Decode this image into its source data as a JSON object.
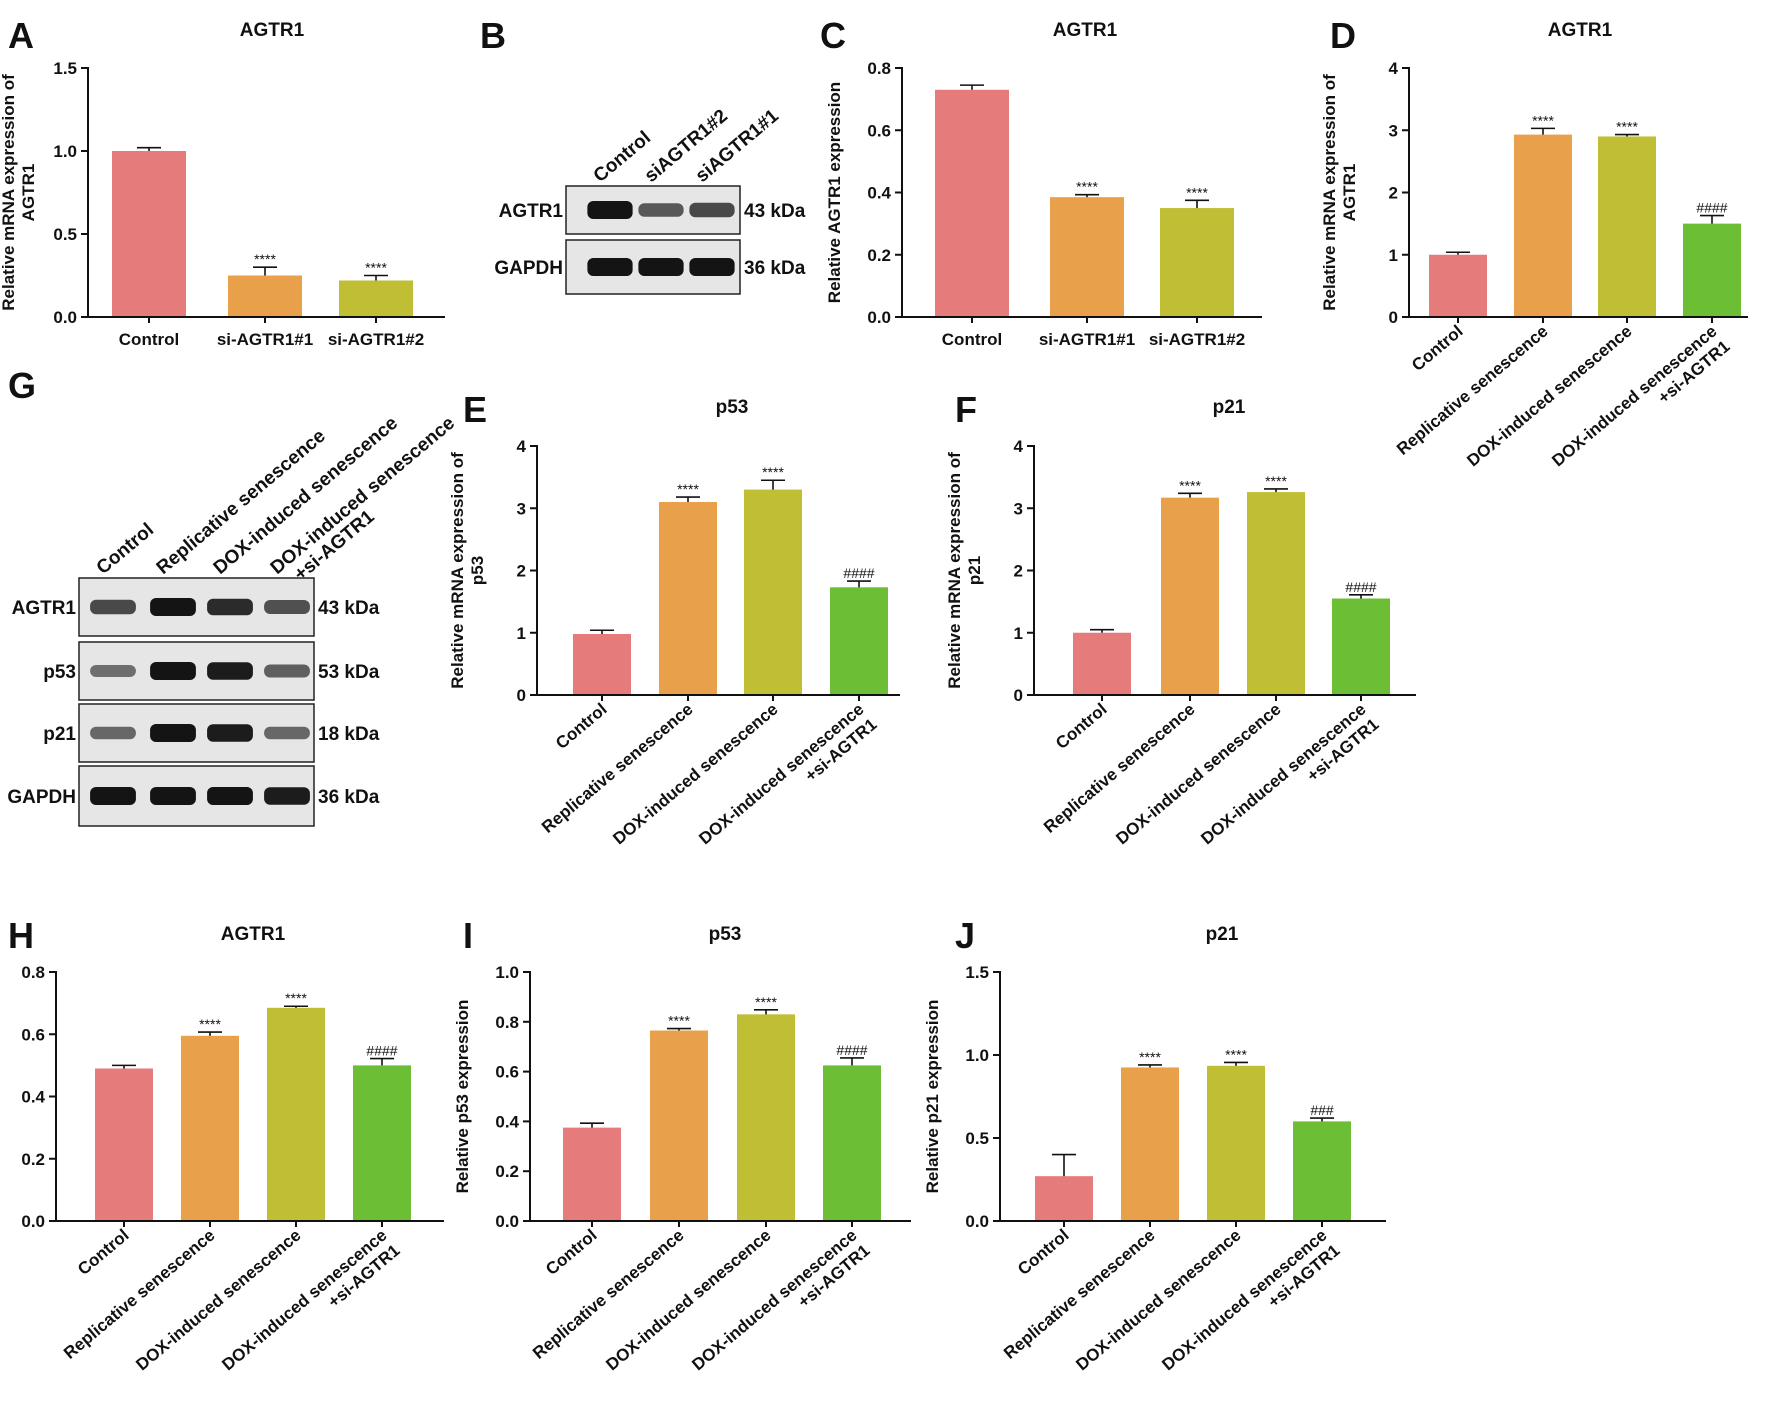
{
  "colors": {
    "Control": "#e57b7b",
    "Replicative senescence": "#e9a04a",
    "DOX-induced senescence": "#bfbe34",
    "DOX-induced senescence +si-AGTR1": "#6cbf34",
    "si-AGTR1#1": "#e9a04a",
    "si-AGTR1#2": "#bfbe34"
  },
  "chart_data": [
    {
      "id": "A",
      "panel_label": "A",
      "type": "bar",
      "title": "AGTR1",
      "ylabel": [
        "Relative mRNA expression of",
        "AGTR1"
      ],
      "ylim": [
        0,
        1.5
      ],
      "yticks": [
        "0.0",
        "0.5",
        "1.0",
        "1.5"
      ],
      "categories": [
        "Control",
        "si-AGTR1#1",
        "si-AGTR1#2"
      ],
      "values": [
        1.0,
        0.25,
        0.22
      ],
      "errors": [
        0.02,
        0.05,
        0.03
      ],
      "annotations": [
        "",
        "****",
        "****"
      ],
      "label_rotation": 0
    },
    {
      "id": "C",
      "panel_label": "C",
      "type": "bar",
      "title": "AGTR1",
      "ylabel": [
        "Relative AGTR1 expression"
      ],
      "ylim": [
        0,
        0.8
      ],
      "yticks": [
        "0.0",
        "0.2",
        "0.4",
        "0.6",
        "0.8"
      ],
      "categories": [
        "Control",
        "si-AGTR1#1",
        "si-AGTR1#2"
      ],
      "values": [
        0.73,
        0.385,
        0.35
      ],
      "errors": [
        0.015,
        0.008,
        0.025
      ],
      "annotations": [
        "",
        "****",
        "****"
      ],
      "label_rotation": 0
    },
    {
      "id": "D",
      "panel_label": "D",
      "type": "bar",
      "title": "AGTR1",
      "ylabel": [
        "Relative mRNA expression of",
        "AGTR1"
      ],
      "ylim": [
        0,
        4
      ],
      "yticks": [
        "0",
        "1",
        "2",
        "3",
        "4"
      ],
      "categories": [
        "Control",
        "Replicative senescence",
        "DOX-induced senescence",
        "DOX-induced senescence +si-AGTR1"
      ],
      "category_lines": [
        [
          "Control"
        ],
        [
          "Replicative senescence"
        ],
        [
          "DOX-induced senescence"
        ],
        [
          "DOX-induced senescence",
          "+si-AGTR1"
        ]
      ],
      "values": [
        1.0,
        2.93,
        2.9,
        1.5
      ],
      "errors": [
        0.04,
        0.1,
        0.03,
        0.13
      ],
      "annotations": [
        "",
        "****",
        "****",
        "####"
      ],
      "label_rotation": -40
    },
    {
      "id": "E",
      "panel_label": "E",
      "type": "bar",
      "title": "p53",
      "ylabel": [
        "Relative mRNA expression of",
        "p53"
      ],
      "ylim": [
        0,
        4
      ],
      "yticks": [
        "0",
        "1",
        "2",
        "3",
        "4"
      ],
      "categories": [
        "Control",
        "Replicative senescence",
        "DOX-induced senescence",
        "DOX-induced senescence +si-AGTR1"
      ],
      "category_lines": [
        [
          "Control"
        ],
        [
          "Replicative senescence"
        ],
        [
          "DOX-induced senescence"
        ],
        [
          "DOX-induced senescence",
          "+si-AGTR1"
        ]
      ],
      "values": [
        0.98,
        3.1,
        3.3,
        1.73
      ],
      "errors": [
        0.06,
        0.08,
        0.15,
        0.1
      ],
      "annotations": [
        "",
        "****",
        "****",
        "####"
      ],
      "label_rotation": -40
    },
    {
      "id": "F",
      "panel_label": "F",
      "type": "bar",
      "title": "p21",
      "ylabel": [
        "Relative mRNA expression of",
        "p21"
      ],
      "ylim": [
        0,
        4
      ],
      "yticks": [
        "0",
        "1",
        "2",
        "3",
        "4"
      ],
      "categories": [
        "Control",
        "Replicative senescence",
        "DOX-induced senescence",
        "DOX-induced senescence +si-AGTR1"
      ],
      "category_lines": [
        [
          "Control"
        ],
        [
          "Replicative senescence"
        ],
        [
          "DOX-induced senescence"
        ],
        [
          "DOX-induced senescence",
          "+si-AGTR1"
        ]
      ],
      "values": [
        1.0,
        3.17,
        3.26,
        1.55
      ],
      "errors": [
        0.05,
        0.07,
        0.05,
        0.06
      ],
      "annotations": [
        "",
        "****",
        "****",
        "####"
      ],
      "label_rotation": -40
    },
    {
      "id": "H",
      "panel_label": "H",
      "type": "bar",
      "title": "AGTR1",
      "ylabel": [
        "Relative AGTR1 expression"
      ],
      "ylim": [
        0,
        0.8
      ],
      "yticks": [
        "0.0",
        "0.2",
        "0.4",
        "0.6",
        "0.8"
      ],
      "categories": [
        "Control",
        "Replicative senescence",
        "DOX-induced senescence",
        "DOX-induced senescence +si-AGTR1"
      ],
      "category_lines": [
        [
          "Control"
        ],
        [
          "Replicative senescence"
        ],
        [
          "DOX-induced senescence"
        ],
        [
          "DOX-induced senescence",
          "+si-AGTR1"
        ]
      ],
      "values": [
        0.49,
        0.595,
        0.685,
        0.5
      ],
      "errors": [
        0.01,
        0.012,
        0.005,
        0.022
      ],
      "annotations": [
        "",
        "****",
        "****",
        "####"
      ],
      "label_rotation": -40
    },
    {
      "id": "I",
      "panel_label": "I",
      "type": "bar",
      "title": "p53",
      "ylabel": [
        "Relative p53 expression"
      ],
      "ylim": [
        0,
        1.0
      ],
      "yticks": [
        "0.0",
        "0.2",
        "0.4",
        "0.6",
        "0.8",
        "1.0"
      ],
      "categories": [
        "Control",
        "Replicative senescence",
        "DOX-induced senescence",
        "DOX-induced senescence +si-AGTR1"
      ],
      "category_lines": [
        [
          "Control"
        ],
        [
          "Replicative senescence"
        ],
        [
          "DOX-induced senescence"
        ],
        [
          "DOX-induced senescence",
          "+si-AGTR1"
        ]
      ],
      "values": [
        0.375,
        0.765,
        0.83,
        0.625
      ],
      "errors": [
        0.018,
        0.008,
        0.018,
        0.03
      ],
      "annotations": [
        "",
        "****",
        "****",
        "####"
      ],
      "label_rotation": -40
    },
    {
      "id": "J",
      "panel_label": "J",
      "type": "bar",
      "title": "p21",
      "ylabel": [
        "Relative p21 expression"
      ],
      "ylim": [
        0,
        1.5
      ],
      "yticks": [
        "0.0",
        "0.5",
        "1.0",
        "1.5"
      ],
      "categories": [
        "Control",
        "Replicative senescence",
        "DOX-induced senescence",
        "DOX-induced senescence +si-AGTR1"
      ],
      "category_lines": [
        [
          "Control"
        ],
        [
          "Replicative senescence"
        ],
        [
          "DOX-induced senescence"
        ],
        [
          "DOX-induced senescence",
          "+si-AGTR1"
        ]
      ],
      "values": [
        0.27,
        0.925,
        0.935,
        0.6
      ],
      "errors": [
        0.13,
        0.015,
        0.02,
        0.02
      ],
      "annotations": [
        "",
        "****",
        "****",
        "###"
      ],
      "label_rotation": -40
    }
  ],
  "blots": [
    {
      "id": "B",
      "panel_label": "B",
      "lanes": [
        "Control",
        "siAGTR1#2",
        "siAGTR1#1"
      ],
      "rows": [
        {
          "protein": "AGTR1",
          "size": "43 kDa",
          "intensity": [
            1.0,
            0.55,
            0.65
          ]
        },
        {
          "protein": "GAPDH",
          "size": "36 kDa",
          "intensity": [
            1.0,
            1.0,
            1.0
          ]
        }
      ]
    },
    {
      "id": "G",
      "panel_label": "G",
      "lanes": [
        "Control",
        "Replicative senescence",
        "DOX-induced senescence",
        "DOX-induced senescence +si-AGTR1"
      ],
      "lane_lines": [
        [
          "Control"
        ],
        [
          "Replicative senescence"
        ],
        [
          "DOX-induced senescence"
        ],
        [
          "DOX-induced senescence",
          "+si-AGTR1"
        ]
      ],
      "rows": [
        {
          "protein": "AGTR1",
          "size": "43 kDa",
          "intensity": [
            0.65,
            1.0,
            0.85,
            0.6
          ]
        },
        {
          "protein": "p53",
          "size": "53 kDa",
          "intensity": [
            0.4,
            1.0,
            0.95,
            0.5
          ]
        },
        {
          "protein": "p21",
          "size": "18 kDa",
          "intensity": [
            0.45,
            1.0,
            0.95,
            0.45
          ]
        },
        {
          "protein": "GAPDH",
          "size": "36 kDa",
          "intensity": [
            1.0,
            1.0,
            1.0,
            0.95
          ]
        }
      ]
    }
  ]
}
